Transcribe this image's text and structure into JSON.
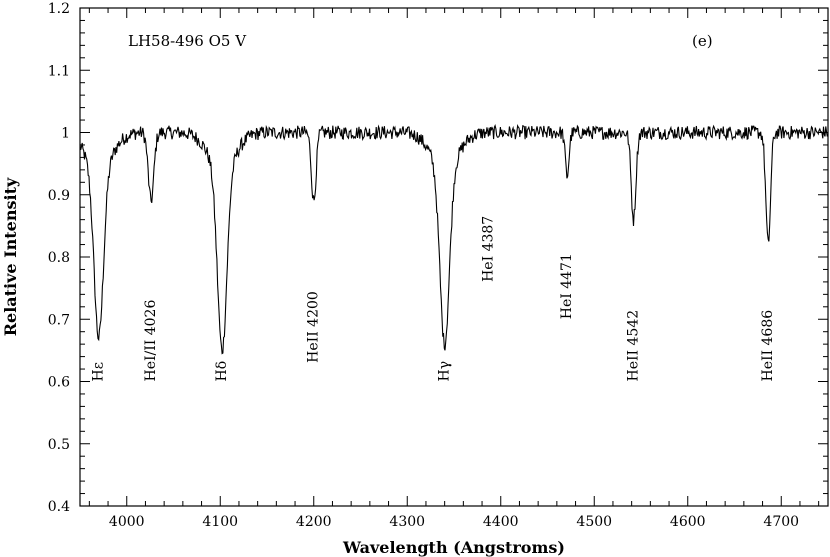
{
  "chart_data": {
    "type": "line",
    "title": "LH58-496 O5 V",
    "panel_label": "(e)",
    "xlabel": "Wavelength (Angstroms)",
    "ylabel": "Relative Intensity",
    "xlim": [
      3950,
      4750
    ],
    "ylim": [
      0.4,
      1.2
    ],
    "x_ticks": [
      4000,
      4100,
      4200,
      4300,
      4400,
      4500,
      4600,
      4700
    ],
    "y_ticks": [
      0.4,
      0.5,
      0.6,
      0.7,
      0.8,
      0.9,
      1,
      1.1,
      1.2
    ],
    "y_tick_labels": [
      "0.4",
      "0.5",
      "0.6",
      "0.7",
      "0.8",
      "0.9",
      "1",
      "1.1",
      "1.2"
    ],
    "grid": false,
    "continuum": 1.0,
    "lines": [
      {
        "label": "Hε",
        "wavelength": 3970,
        "depth_min": 0.73,
        "label_y": 0.6
      },
      {
        "label": "HeI/II 4026",
        "wavelength": 4026,
        "depth_min": 0.89,
        "label_y": 0.6
      },
      {
        "label": "Hδ",
        "wavelength": 4102,
        "depth_min": 0.71,
        "label_y": 0.6
      },
      {
        "label": "HeII 4200",
        "wavelength": 4200,
        "depth_min": 0.89,
        "label_y": 0.63
      },
      {
        "label": "Hγ",
        "wavelength": 4340,
        "depth_min": 0.72,
        "label_y": 0.6
      },
      {
        "label": "HeI 4387",
        "wavelength": 4387,
        "depth_min": null,
        "label_y": 0.76
      },
      {
        "label": "HeI 4471",
        "wavelength": 4471,
        "depth_min": 0.93,
        "label_y": 0.7
      },
      {
        "label": "HeII 4542",
        "wavelength": 4542,
        "depth_min": 0.86,
        "label_y": 0.6
      },
      {
        "label": "HeII 4686",
        "wavelength": 4686,
        "depth_min": 0.82,
        "label_y": 0.6
      }
    ]
  }
}
